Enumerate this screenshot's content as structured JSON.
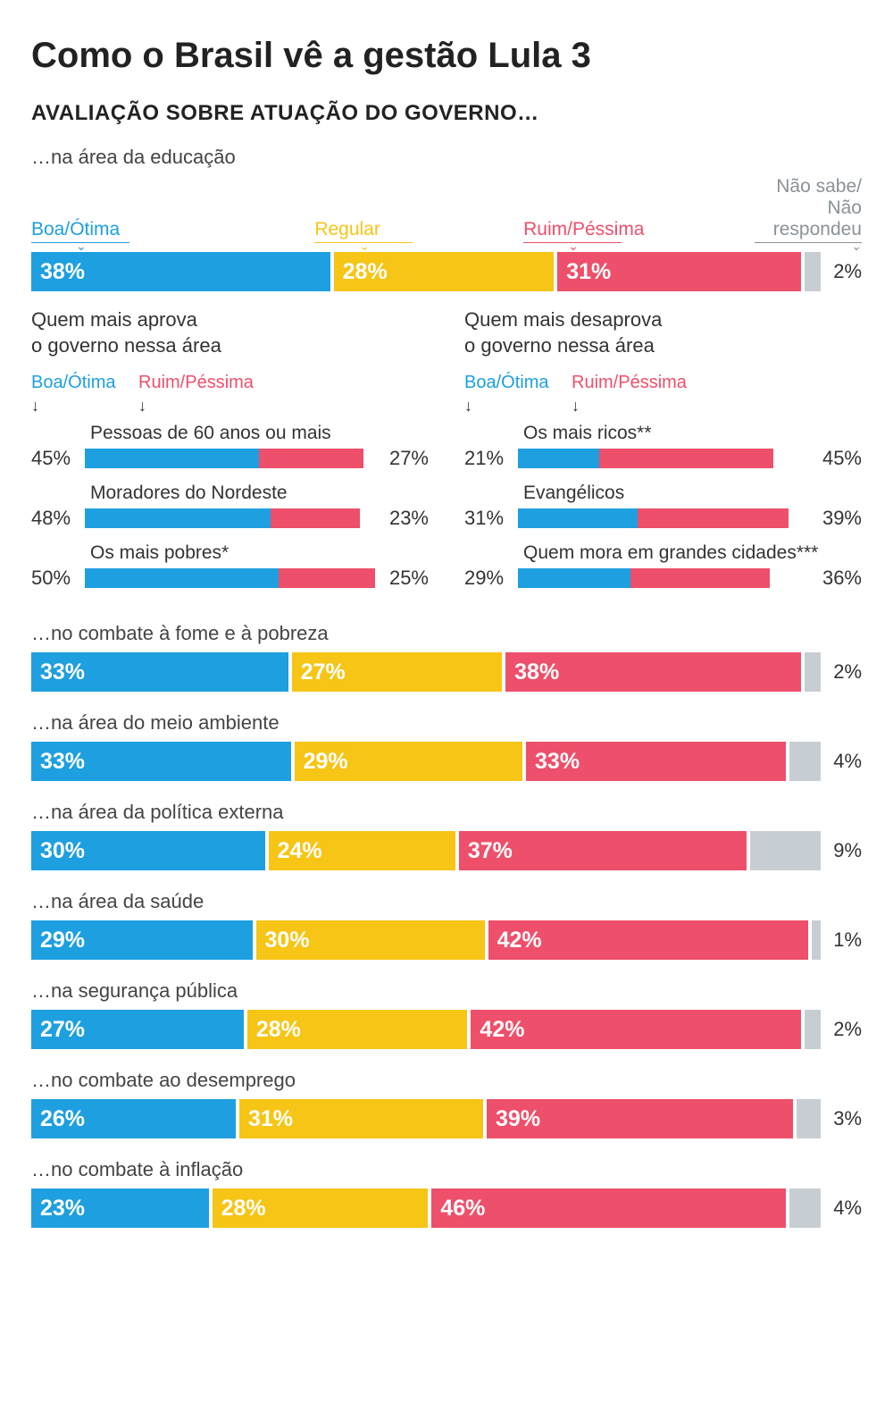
{
  "colors": {
    "good": "#1e9fe0",
    "regular": "#f6c515",
    "bad": "#ee4f6a",
    "dk": "#c7ced3",
    "text": "#333333",
    "gray_text": "#8a9298"
  },
  "title": "Como o Brasil vê a gestão Lula 3",
  "subtitle": "AVALIAÇÃO SOBRE ATUAÇÃO DO GOVERNO…",
  "legend": {
    "good": "Boa/Ótima",
    "regular": "Regular",
    "bad": "Ruim/Péssima",
    "dk": "Não sabe/\nNão respondeu"
  },
  "first_area": {
    "label": "…na área da educação",
    "values": {
      "good": 38,
      "regular": 28,
      "bad": 31,
      "dk": 2
    }
  },
  "approve_head": "Quem mais aprova\no governo nessa área",
  "disapprove_head": "Quem mais desaprova\no governo nessa área",
  "sub_legend_good": "Boa/Ótima",
  "sub_legend_bad": "Ruim/Péssima",
  "demo_bar_scale": 75,
  "approve_rows": [
    {
      "label": "Pessoas de 60 anos ou mais",
      "good": 45,
      "bad": 27
    },
    {
      "label": "Moradores do Nordeste",
      "good": 48,
      "bad": 23
    },
    {
      "label": "Os mais pobres*",
      "good": 50,
      "bad": 25
    }
  ],
  "disapprove_rows": [
    {
      "label": "Os mais ricos**",
      "good": 21,
      "bad": 45
    },
    {
      "label": "Evangélicos",
      "good": 31,
      "bad": 39
    },
    {
      "label": "Quem mora em grandes cidades***",
      "good": 29,
      "bad": 36
    }
  ],
  "other_areas": [
    {
      "label": "…no combate à fome e à pobreza",
      "good": 33,
      "regular": 27,
      "bad": 38,
      "dk": 2
    },
    {
      "label": "…na área do meio ambiente",
      "good": 33,
      "regular": 29,
      "bad": 33,
      "dk": 4
    },
    {
      "label": "…na área da política externa",
      "good": 30,
      "regular": 24,
      "bad": 37,
      "dk": 9
    },
    {
      "label": "…na área da saúde",
      "good": 29,
      "regular": 30,
      "bad": 42,
      "dk": 1
    },
    {
      "label": "…na segurança pública",
      "good": 27,
      "regular": 28,
      "bad": 42,
      "dk": 2
    },
    {
      "label": "…no combate ao desemprego",
      "good": 26,
      "regular": 31,
      "bad": 39,
      "dk": 3
    },
    {
      "label": "…no combate à inflação",
      "good": 23,
      "regular": 28,
      "bad": 46,
      "dk": 4
    }
  ]
}
